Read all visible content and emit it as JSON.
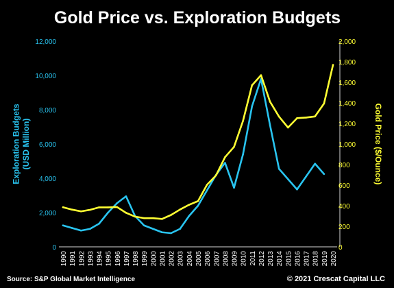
{
  "chart_data": {
    "type": "line",
    "title": "Gold Price vs. Exploration Budgets",
    "x": [
      "1990",
      "1991",
      "1992",
      "1993",
      "1994",
      "1995",
      "1996",
      "1997",
      "1998",
      "1999",
      "2000",
      "2001",
      "2002",
      "2003",
      "2004",
      "2005",
      "2006",
      "2007",
      "2008",
      "2009",
      "2010",
      "2011",
      "2012",
      "2013",
      "2014",
      "2015",
      "2016",
      "2017",
      "2018",
      "2019",
      "2020"
    ],
    "ylabel_left": "Exploration Budgets (USD Million)",
    "ylabel_left_lines": [
      "Exploration Budgets",
      "(USD Million)"
    ],
    "ylabel_right": "Gold Price ($/Ounce)",
    "ylim_left": [
      0,
      12000
    ],
    "yticks_left": [
      "0",
      "2,000",
      "4,000",
      "6,000",
      "8,000",
      "10,000",
      "12,000"
    ],
    "ylim_right": [
      0,
      2000
    ],
    "yticks_right": [
      "0",
      "200",
      "400",
      "600",
      "800",
      "1,000",
      "1,200",
      "1,400",
      "1,600",
      "1,800",
      "2,000"
    ],
    "grid": false,
    "legend": "none",
    "series": [
      {
        "axis": "left",
        "color": "#29c4f0",
        "values": [
          1250,
          1100,
          950,
          1050,
          1350,
          2000,
          2550,
          2950,
          1800,
          1250,
          1050,
          850,
          800,
          1050,
          1800,
          2400,
          3300,
          4200,
          4900,
          3450,
          5400,
          8200,
          9800,
          7100,
          4550,
          3950,
          3350,
          4100,
          4850,
          4250,
          null
        ]
      },
      {
        "axis": "right",
        "color": "#ffff33",
        "values": [
          385,
          362,
          345,
          360,
          384,
          384,
          387,
          331,
          294,
          279,
          279,
          271,
          310,
          363,
          409,
          445,
          604,
          695,
          872,
          972,
          1225,
          1571,
          1669,
          1411,
          1266,
          1160,
          1251,
          1257,
          1268,
          1393,
          1769
        ]
      }
    ]
  },
  "footer": {
    "source": "Source: S&P Global Market Intelligence",
    "copyright": "© 2021 Crescat Capital LLC"
  }
}
